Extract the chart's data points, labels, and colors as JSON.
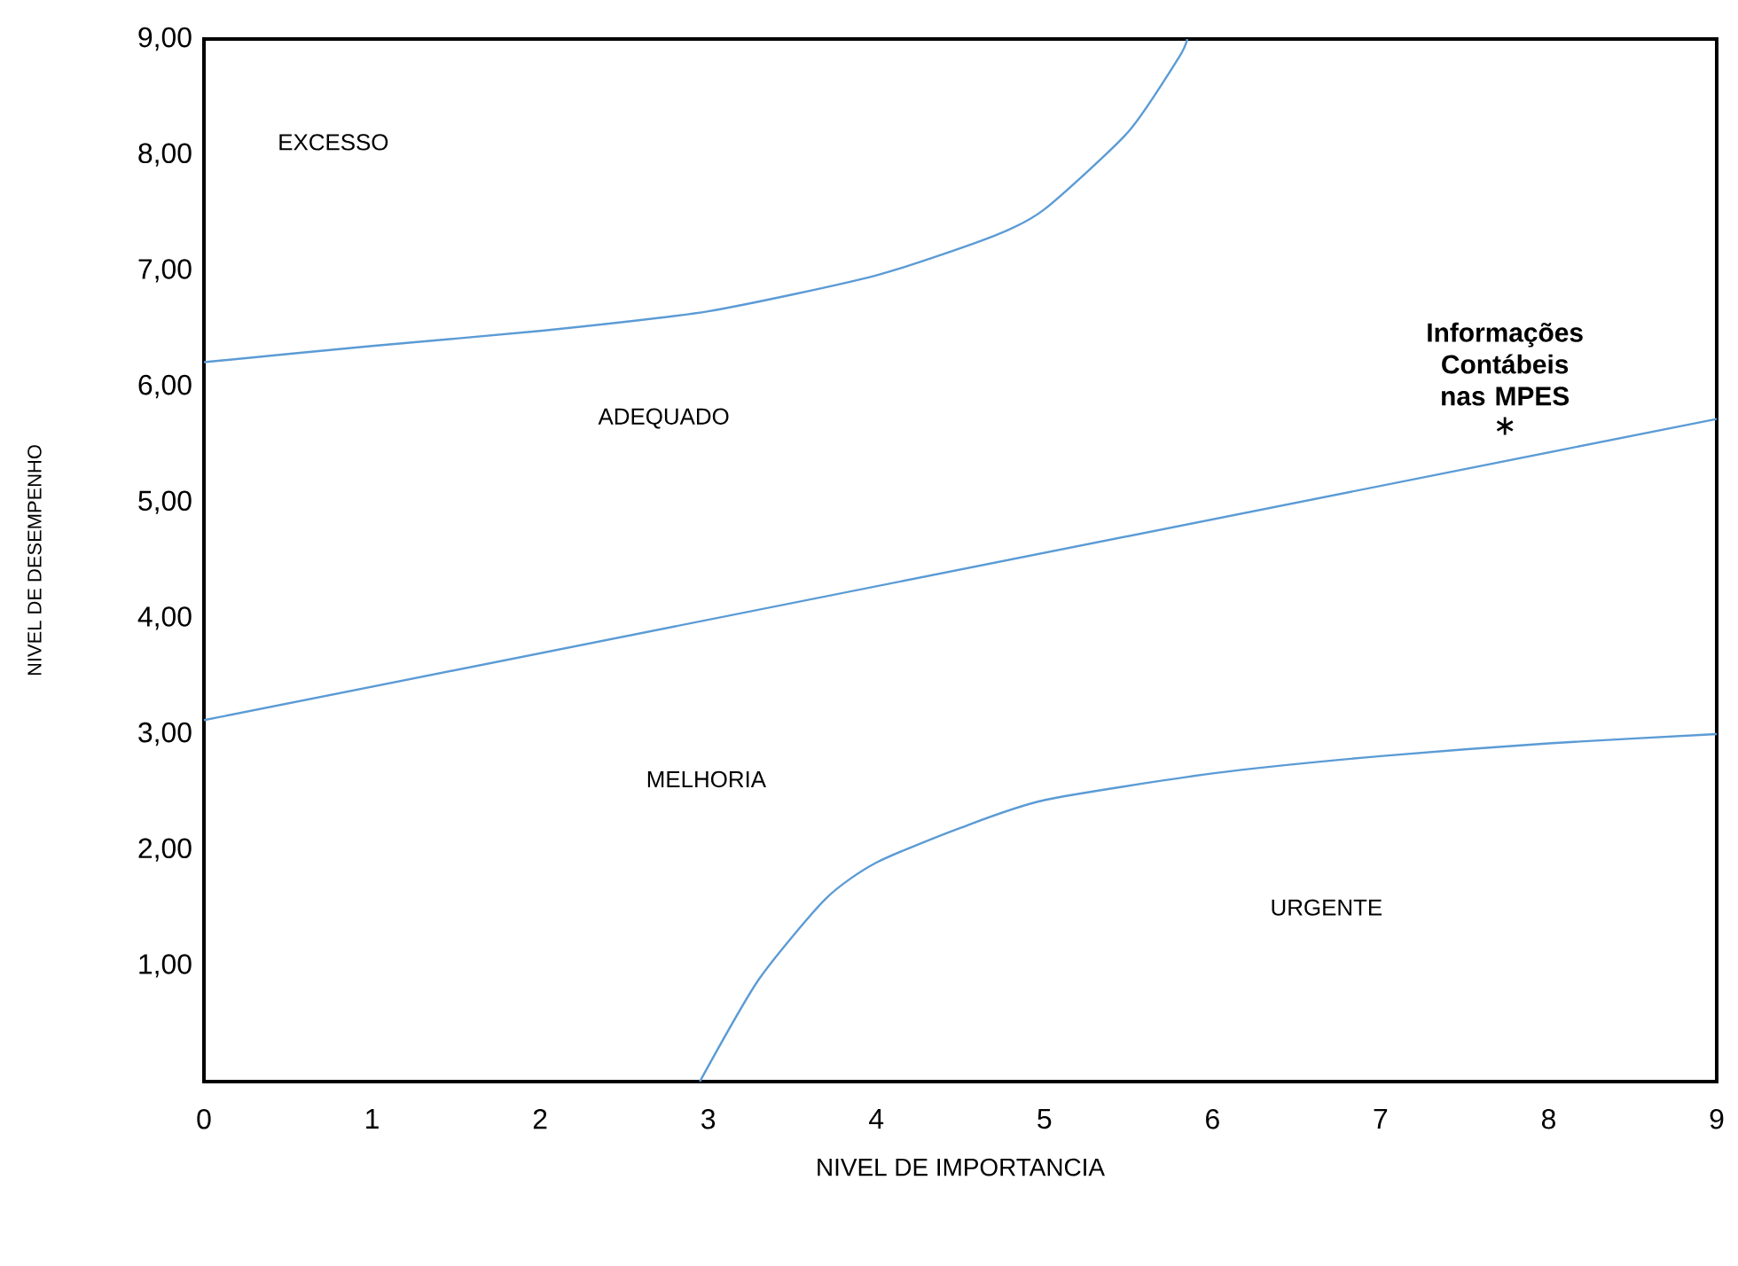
{
  "chart_data": {
    "type": "line",
    "xlabel": "NIVEL DE IMPORTANCIA",
    "ylabel": "NIVEL DE DESEMPENHO",
    "xlim": [
      0,
      9
    ],
    "ylim": [
      0,
      9
    ],
    "xticks": [
      0,
      1,
      2,
      3,
      4,
      5,
      6,
      7,
      8,
      9
    ],
    "yticks": [
      {
        "value": 1,
        "label": "1,00"
      },
      {
        "value": 2,
        "label": "2,00"
      },
      {
        "value": 3,
        "label": "3,00"
      },
      {
        "value": 4,
        "label": "4,00"
      },
      {
        "value": 5,
        "label": "5,00"
      },
      {
        "value": 6,
        "label": "6,00"
      },
      {
        "value": 7,
        "label": "7,00"
      },
      {
        "value": 8,
        "label": "8,00"
      },
      {
        "value": 9,
        "label": "9,00"
      }
    ],
    "grid": false,
    "marker": "none",
    "series": [
      {
        "color": "#5b9bd5",
        "x": [
          0,
          1,
          2,
          3,
          4,
          4.7,
          5,
          5.5,
          5.8,
          5.85
        ],
        "values": [
          6.21,
          6.35,
          6.48,
          6.65,
          6.96,
          7.3,
          7.53,
          8.2,
          8.84,
          9.0
        ]
      },
      {
        "color": "#5b9bd5",
        "x": [
          0,
          9
        ],
        "values": [
          3.12,
          5.72
        ]
      },
      {
        "color": "#5b9bd5",
        "x": [
          2.95,
          3.3,
          3.7,
          4,
          4.5,
          5,
          6,
          7,
          8,
          9
        ],
        "values": [
          0,
          0.88,
          1.58,
          1.89,
          2.19,
          2.43,
          2.66,
          2.81,
          2.92,
          3.0
        ]
      },
      {
        "type": "scatter",
        "name": "Informações Contábeis nas MPES",
        "color": "#000000",
        "marker": "cross",
        "x": [
          7.74
        ],
        "values": [
          5.66
        ]
      }
    ],
    "annotations": [
      "EXCESSO",
      "ADEQUADO",
      "MELHORIA",
      "URGENTE"
    ]
  }
}
